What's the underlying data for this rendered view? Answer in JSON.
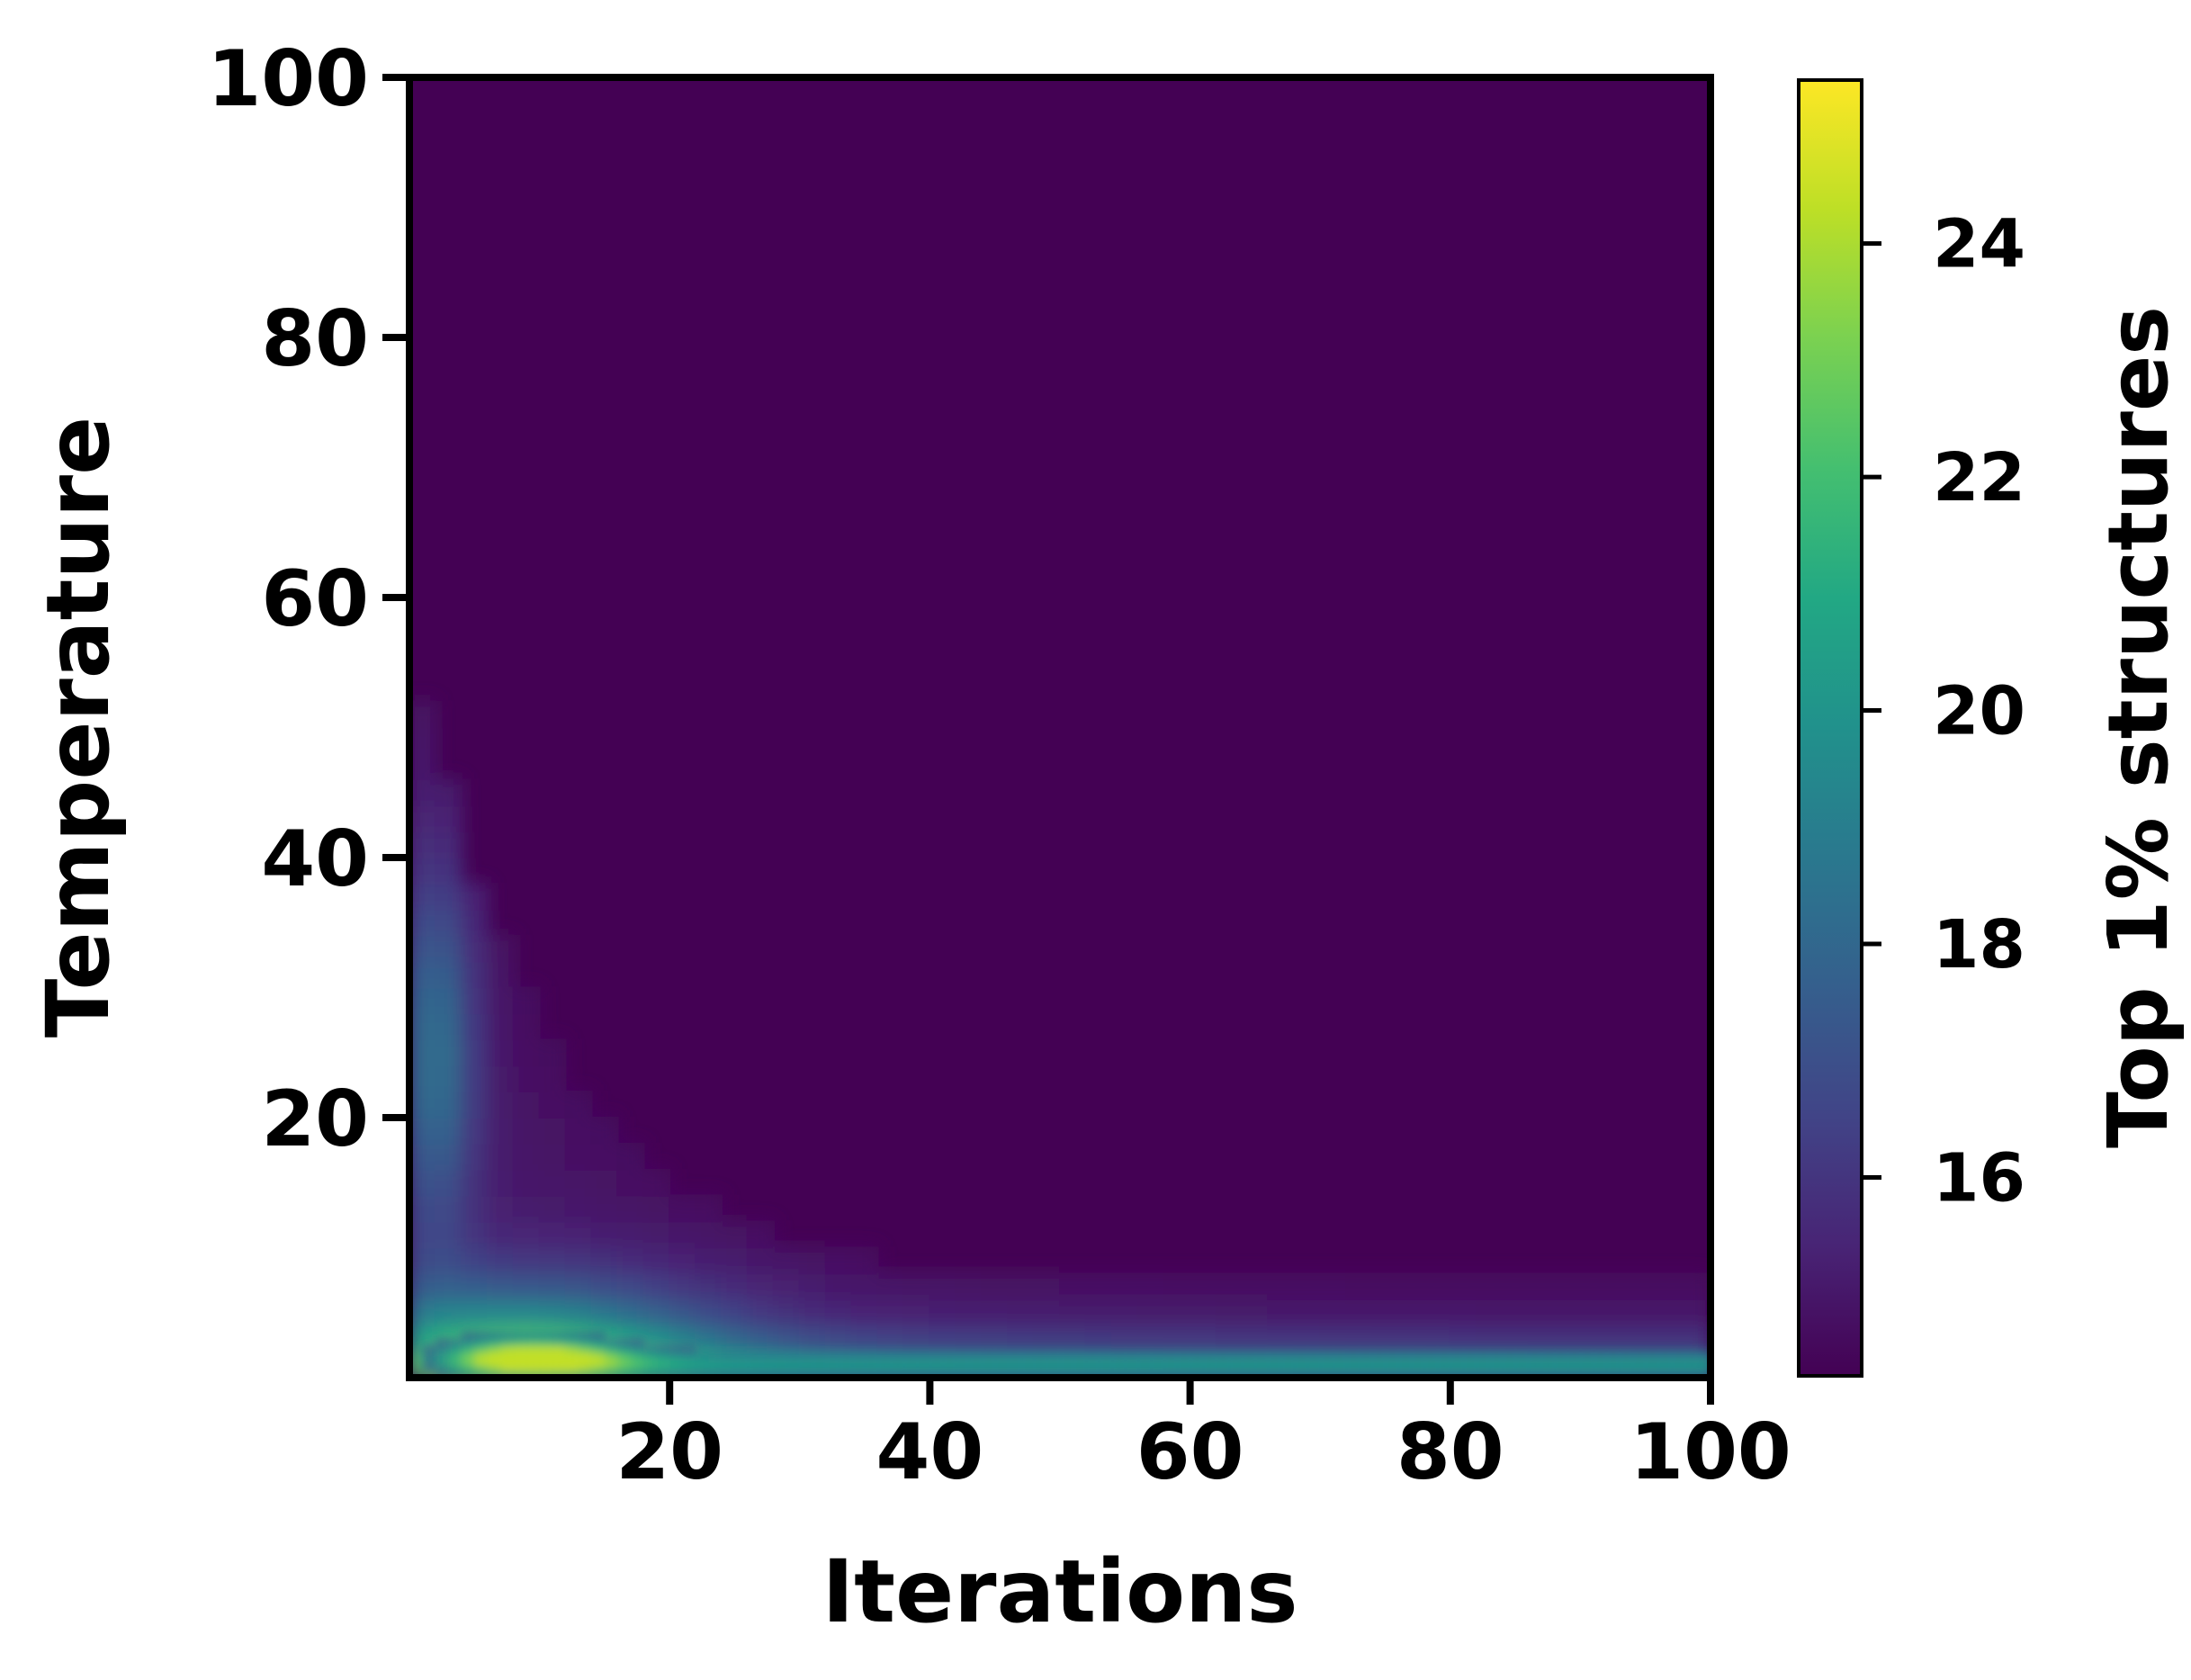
{
  "chart_data": {
    "type": "heatmap",
    "title": "",
    "xlabel": "Iterations",
    "ylabel": "Temperature",
    "xlim": [
      0,
      100
    ],
    "ylim": [
      0,
      100
    ],
    "x_ticks": [
      20,
      40,
      60,
      80,
      100
    ],
    "y_ticks": [
      20,
      40,
      60,
      80,
      100
    ],
    "colorbar": {
      "label": "Top 1% structures",
      "range": [
        14.3,
        25.4
      ],
      "ticks": [
        16,
        18,
        20,
        22,
        24
      ],
      "colormap": "viridis"
    },
    "background_value": 14.3,
    "peak": {
      "iterations": 9,
      "temperature": 2,
      "value": 24.3
    },
    "description_values": {
      "high_band_temperature_limit_at_iterations_100": 7,
      "low_iteration_column_max_temperature": 57
    }
  }
}
